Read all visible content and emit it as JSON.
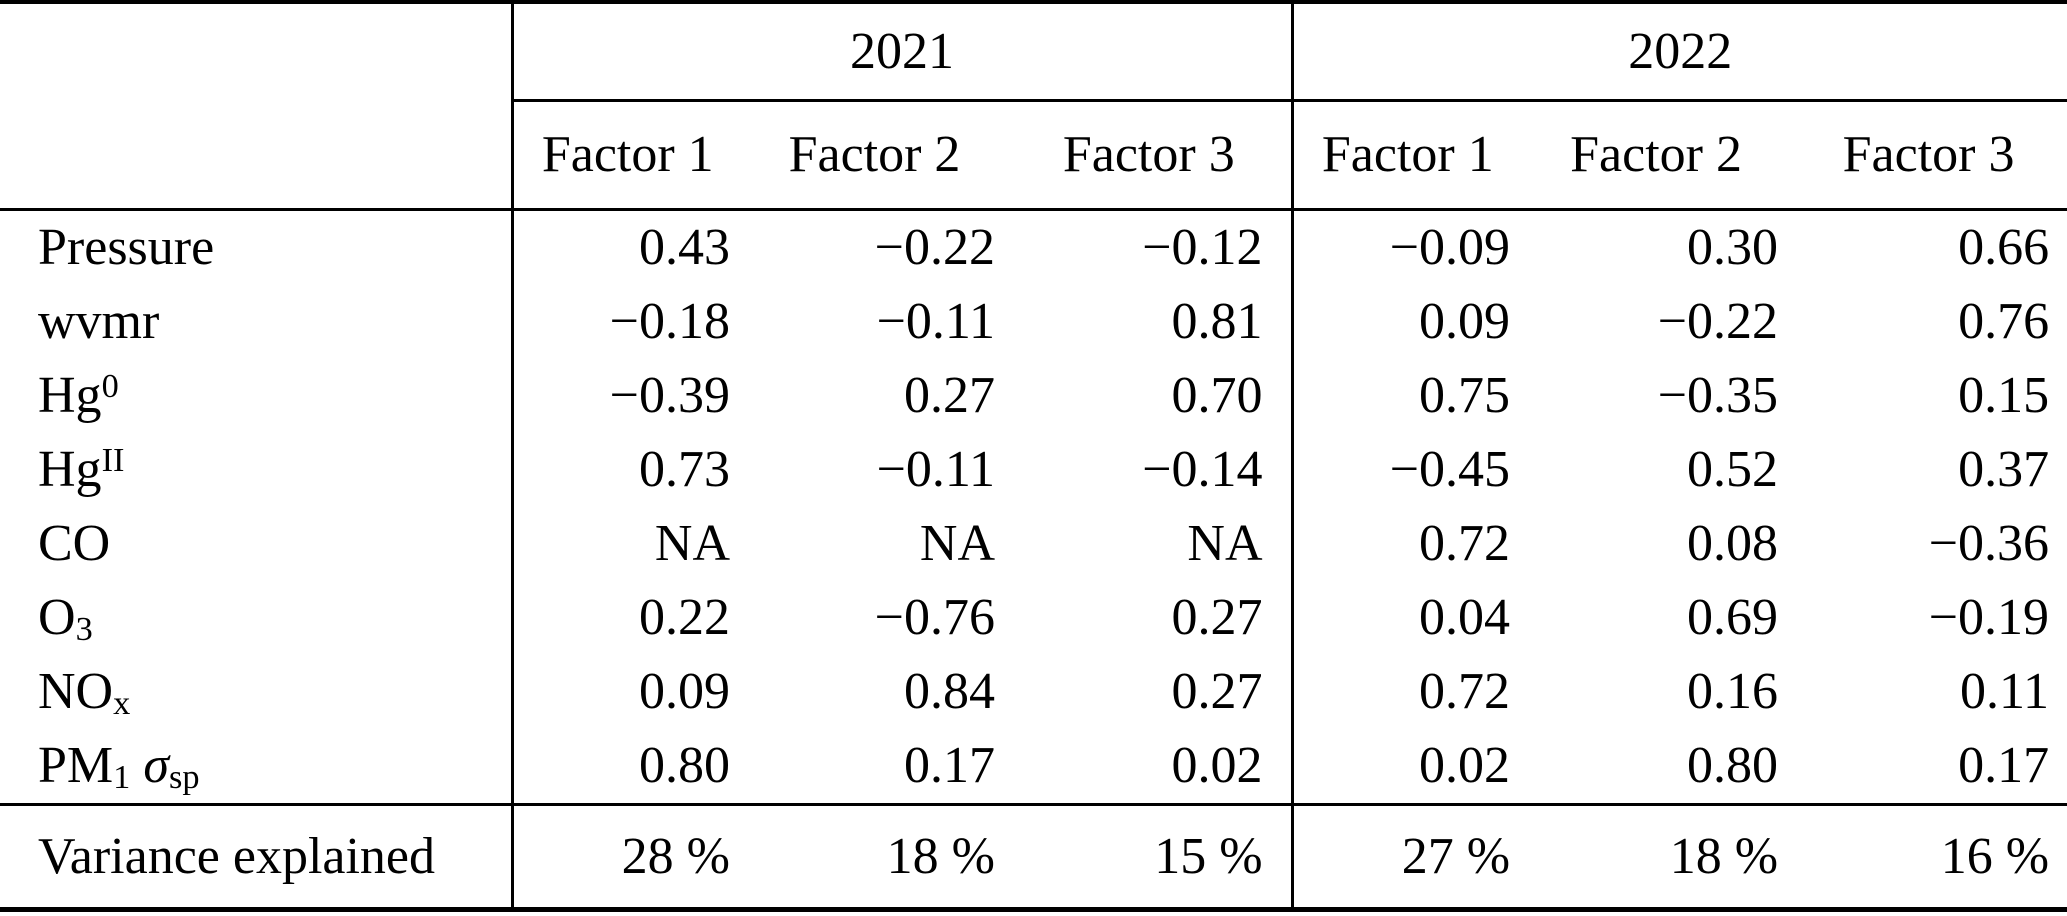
{
  "chart_data": {
    "type": "table",
    "year_groups": [
      "2021",
      "2022"
    ],
    "factor_headers": [
      "Factor 1",
      "Factor 2",
      "Factor 3",
      "Factor 1",
      "Factor 2",
      "Factor 3"
    ],
    "rows": [
      {
        "label": {
          "text": "Pressure"
        },
        "values": [
          "0.43",
          "−0.22",
          "−0.12",
          "−0.09",
          "0.30",
          "0.66"
        ]
      },
      {
        "label": {
          "text": "wvmr"
        },
        "values": [
          "−0.18",
          "−0.11",
          "0.81",
          "0.09",
          "−0.22",
          "0.76"
        ]
      },
      {
        "label": {
          "base": "Hg",
          "sup": "0"
        },
        "values": [
          "−0.39",
          "0.27",
          "0.70",
          "0.75",
          "−0.35",
          "0.15"
        ]
      },
      {
        "label": {
          "base": "Hg",
          "sup": "II"
        },
        "values": [
          "0.73",
          "−0.11",
          "−0.14",
          "−0.45",
          "0.52",
          "0.37"
        ]
      },
      {
        "label": {
          "text": "CO"
        },
        "values": [
          "NA",
          "NA",
          "NA",
          "0.72",
          "0.08",
          "−0.36"
        ]
      },
      {
        "label": {
          "base": "O",
          "sub": "3"
        },
        "values": [
          "0.22",
          "−0.76",
          "0.27",
          "0.04",
          "0.69",
          "−0.19"
        ]
      },
      {
        "label": {
          "base": "NO",
          "sub": "x"
        },
        "values": [
          "0.09",
          "0.84",
          "0.27",
          "0.72",
          "0.16",
          "0.11"
        ]
      },
      {
        "label": {
          "base": "PM",
          "sub": "1",
          "sep": " ",
          "symbol": "σ",
          "symbol_sub": "sp"
        },
        "values": [
          "0.80",
          "0.17",
          "0.02",
          "0.02",
          "0.80",
          "0.17"
        ]
      }
    ],
    "footer": {
      "label": {
        "text": "Variance explained"
      },
      "values": [
        "28 %",
        "18 %",
        "15 %",
        "27 %",
        "18 %",
        "16 %"
      ]
    },
    "colors": {
      "rule": "#000000",
      "text": "#000000",
      "background": "#ffffff"
    }
  }
}
